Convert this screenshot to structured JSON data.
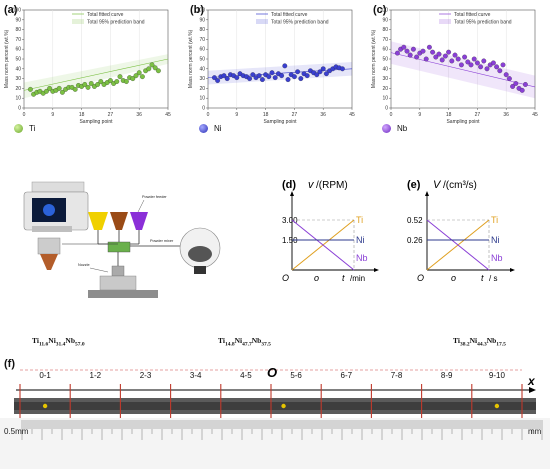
{
  "scatter_panels": [
    {
      "letter": "(a)",
      "element": "Ti",
      "color": "#7bc043",
      "legend": [
        "Total fitted curve",
        "Total 95% prediction band"
      ],
      "ylabel": "Mass norm percent (wt.%)",
      "xlabel": "Sampling point",
      "yticks": [
        "0",
        "10",
        "20",
        "30",
        "40",
        "50",
        "60",
        "70",
        "80",
        "90",
        "100"
      ],
      "xticks": [
        "0",
        "9",
        "18",
        "27",
        "36",
        "45"
      ]
    },
    {
      "letter": "(b)",
      "element": "Ni",
      "color": "#3a3fd0",
      "legend": [
        "Total fitted curve",
        "Total 95% prediction band"
      ],
      "ylabel": "Mass norm percent (wt.%)",
      "xlabel": "Sampling point",
      "yticks": [
        "0",
        "10",
        "20",
        "30",
        "40",
        "50",
        "60",
        "70",
        "80",
        "90",
        "100"
      ],
      "xticks": [
        "0",
        "9",
        "18",
        "27",
        "36",
        "45"
      ]
    },
    {
      "letter": "(c)",
      "element": "Nb",
      "color": "#8a3fd6",
      "legend": [
        "Total fitted curve",
        "Total 95% prediction band"
      ],
      "ylabel": "Mass norm percent (wt.%)",
      "xlabel": "Sampling point",
      "yticks": [
        "0",
        "10",
        "20",
        "30",
        "40",
        "50",
        "60",
        "70",
        "80",
        "90",
        "100"
      ],
      "xticks": [
        "0",
        "9",
        "18",
        "27",
        "36",
        "45"
      ]
    }
  ],
  "chart_data": [
    {
      "type": "scatter",
      "title": "",
      "xlabel": "Sampling point",
      "ylabel": "Mass norm percent (wt.%)",
      "xlim": [
        0,
        45
      ],
      "ylim": [
        0,
        100
      ],
      "series": [
        {
          "name": "Ti",
          "x": [
            2,
            3,
            4,
            5,
            6,
            7,
            8,
            9,
            10,
            11,
            12,
            13,
            14,
            15,
            16,
            17,
            18,
            19,
            20,
            21,
            22,
            23,
            24,
            25,
            26,
            27,
            28,
            29,
            30,
            31,
            32,
            33,
            34,
            35,
            36,
            37,
            38,
            39,
            40,
            41,
            42
          ],
          "y": [
            19,
            14,
            16,
            17,
            15,
            17,
            20,
            17,
            18,
            20,
            16,
            19,
            21,
            21,
            19,
            23,
            22,
            24,
            21,
            25,
            22,
            24,
            27,
            24,
            26,
            28,
            25,
            27,
            32,
            28,
            27,
            31,
            30,
            33,
            36,
            32,
            38,
            40,
            44,
            41,
            38
          ]
        }
      ]
    },
    {
      "type": "scatter",
      "title": "",
      "xlabel": "Sampling point",
      "ylabel": "Mass norm percent (wt.%)",
      "xlim": [
        0,
        45
      ],
      "ylim": [
        0,
        100
      ],
      "series": [
        {
          "name": "Ni",
          "x": [
            2,
            3,
            4,
            5,
            6,
            7,
            8,
            9,
            10,
            11,
            12,
            13,
            14,
            15,
            16,
            17,
            18,
            19,
            20,
            21,
            22,
            23,
            24,
            25,
            26,
            27,
            28,
            29,
            30,
            31,
            32,
            33,
            34,
            35,
            36,
            37,
            38,
            39,
            40,
            41,
            42
          ],
          "y": [
            31,
            28,
            32,
            33,
            30,
            34,
            33,
            31,
            35,
            33,
            32,
            30,
            34,
            31,
            33,
            29,
            34,
            32,
            36,
            31,
            35,
            33,
            43,
            29,
            34,
            32,
            37,
            30,
            35,
            33,
            38,
            36,
            34,
            37,
            40,
            35,
            38,
            40,
            42,
            41,
            40
          ]
        }
      ]
    },
    {
      "type": "scatter",
      "title": "",
      "xlabel": "Sampling point",
      "ylabel": "Mass norm percent (wt.%)",
      "xlim": [
        0,
        45
      ],
      "ylim": [
        0,
        100
      ],
      "series": [
        {
          "name": "Nb",
          "x": [
            2,
            3,
            4,
            5,
            6,
            7,
            8,
            9,
            10,
            11,
            12,
            13,
            14,
            15,
            16,
            17,
            18,
            19,
            20,
            21,
            22,
            23,
            24,
            25,
            26,
            27,
            28,
            29,
            30,
            31,
            32,
            33,
            34,
            35,
            36,
            37,
            38,
            39,
            40,
            41,
            42
          ],
          "y": [
            56,
            60,
            62,
            58,
            54,
            60,
            52,
            56,
            58,
            50,
            62,
            57,
            52,
            55,
            49,
            53,
            57,
            48,
            54,
            50,
            44,
            52,
            47,
            44,
            50,
            46,
            42,
            48,
            40,
            44,
            46,
            42,
            38,
            44,
            34,
            30,
            22,
            25,
            20,
            18,
            24
          ]
        }
      ]
    },
    {
      "type": "line",
      "title": "",
      "panel": "(d)",
      "ylabel": "v /(RPM)",
      "xlabel": "t /min",
      "yticks": [
        "3.00",
        "1.50"
      ],
      "xticks": [
        "O",
        "o"
      ],
      "series": [
        {
          "name": "Ti",
          "color": "#e0a020",
          "x": [
            0,
            1
          ],
          "y": [
            0,
            3.0
          ]
        },
        {
          "name": "Ni",
          "color": "#2d3a8c",
          "x": [
            0,
            1
          ],
          "y": [
            1.5,
            1.5
          ]
        },
        {
          "name": "Nb",
          "color": "#8a3fd6",
          "x": [
            0,
            1
          ],
          "y": [
            3.0,
            0
          ]
        }
      ]
    },
    {
      "type": "line",
      "title": "",
      "panel": "(e)",
      "ylabel": "V /(cm³/s)",
      "xlabel": "t /s",
      "yticks": [
        "0.52",
        "0.26"
      ],
      "xticks": [
        "O",
        "o"
      ],
      "series": [
        {
          "name": "Ti",
          "color": "#e0a020",
          "x": [
            0,
            1
          ],
          "y": [
            0,
            0.52
          ]
        },
        {
          "name": "Ni",
          "color": "#2d3a8c",
          "x": [
            0,
            1
          ],
          "y": [
            0.26,
            0.26
          ]
        },
        {
          "name": "Nb",
          "color": "#8a3fd6",
          "x": [
            0,
            1
          ],
          "y": [
            0.52,
            0
          ]
        }
      ]
    }
  ],
  "schematic": {
    "powder_feeder": "Powder feeder",
    "powder_mixer": "Powder mixer",
    "nozzle": "Nozzle"
  },
  "line_charts": {
    "d": {
      "letter": "(d)",
      "v": "v",
      "unit": "/(RPM)",
      "y1": "3.00",
      "y2": "1.50",
      "origin": "O",
      "mid": "o",
      "t": "t",
      "tunit": "/min",
      "labels": {
        "ti": "Ti",
        "ni": "Ni",
        "nb": "Nb"
      }
    },
    "e": {
      "letter": "(e)",
      "v": "V",
      "unit": "/(cm³/s)",
      "y1": "0.52",
      "y2": "0.26",
      "origin": "O",
      "mid": "o",
      "t": "t",
      "tunit": "/ s",
      "labels": {
        "ti": "Ti",
        "ni": "Ni",
        "nb": "Nb"
      }
    }
  },
  "compositions": {
    "left": {
      "ti": "Ti",
      "ti_sub": "11.6",
      "ni": "Ni",
      "ni_sub": "31.4",
      "nb": "Nb",
      "nb_sub": "57.0"
    },
    "mid": {
      "ti": "Ti",
      "ti_sub": "14.8",
      "ni": "Ni",
      "ni_sub": "47.7",
      "nb": "Nb",
      "nb_sub": "37.5"
    },
    "right": {
      "ti": "Ti",
      "ti_sub": "38.2",
      "ni": "Ni",
      "ni_sub": "44.3",
      "nb": "Nb",
      "nb_sub": "17.5"
    }
  },
  "strip": {
    "letter": "(f)",
    "segments": [
      "0-1",
      "1-2",
      "2-3",
      "3-4",
      "4-5",
      "5-6",
      "6-7",
      "7-8",
      "8-9",
      "9-10"
    ],
    "origin": "O",
    "axis": "x",
    "scale_left": "0.5mm",
    "scale_right": "mm"
  }
}
